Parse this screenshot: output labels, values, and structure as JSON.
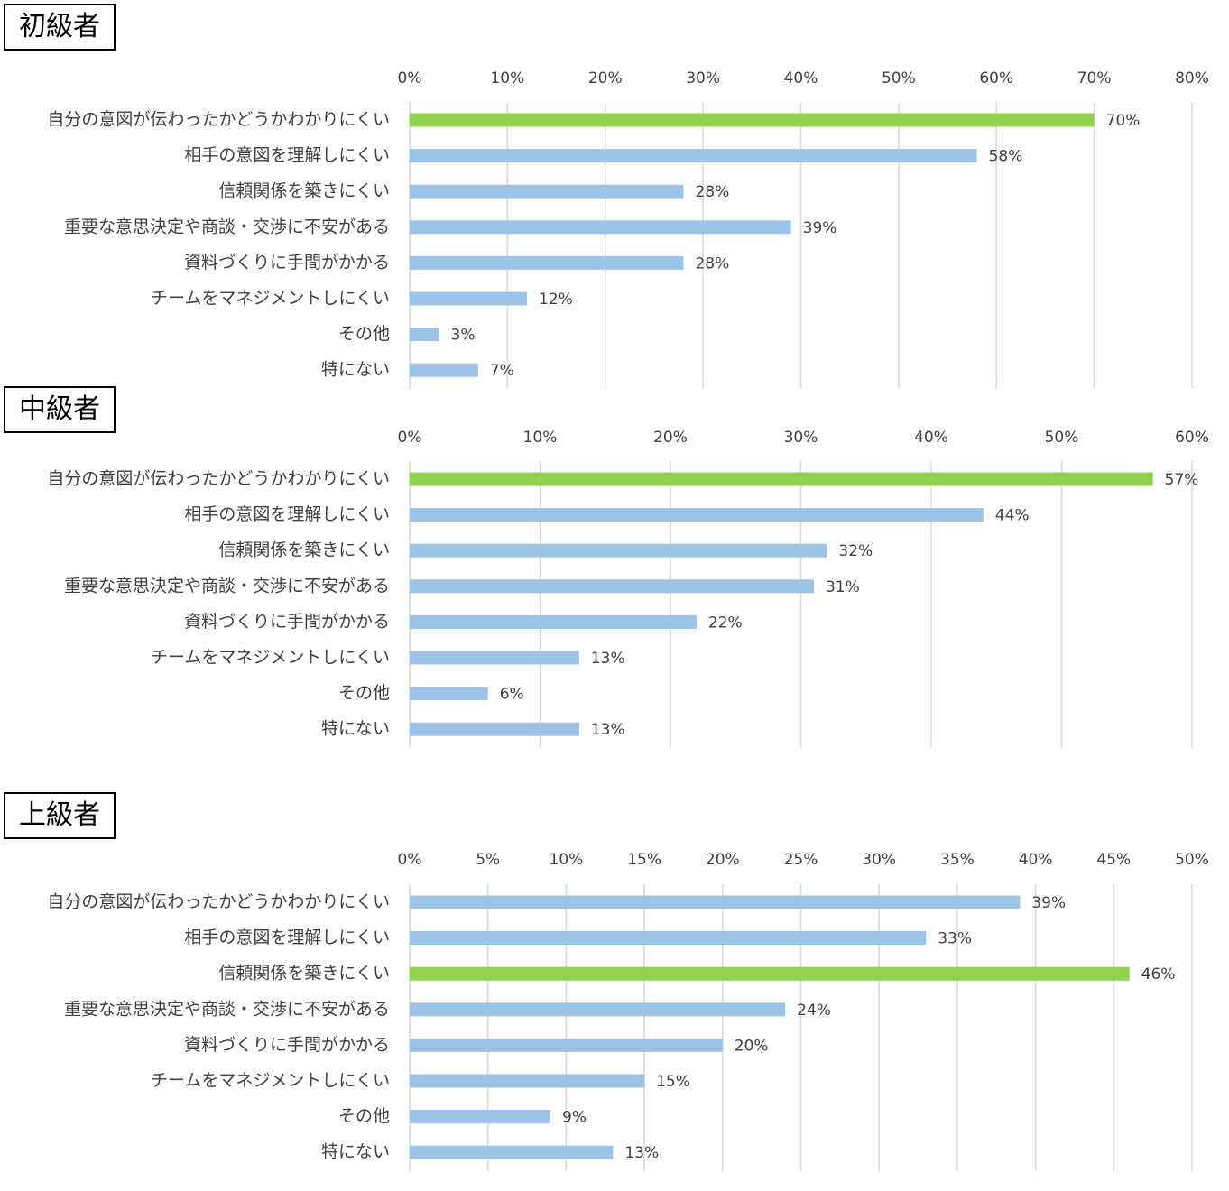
{
  "colors": {
    "highlight": "#92d050",
    "bar": "#9dc3e6",
    "grid": "#d9d9d9",
    "text": "#404040"
  },
  "chart_data": [
    {
      "type": "bar",
      "orientation": "horizontal",
      "title": "初級者",
      "categories": [
        "自分の意図が伝わったかどうかわかりにくい",
        "相手の意図を理解しにくい",
        "信頼関係を築きにくい",
        "重要な意思決定や商談・交渉に不安がある",
        "資料づくりに手間がかかる",
        "チームをマネジメントしにくい",
        "その他",
        "特にない"
      ],
      "values": [
        70,
        58,
        28,
        39,
        28,
        12,
        3,
        7
      ],
      "value_labels": [
        "70%",
        "58%",
        "28%",
        "39%",
        "28%",
        "12%",
        "3%",
        "7%"
      ],
      "highlight_index": 0,
      "xlim": [
        0,
        80
      ],
      "ticks": [
        "0%",
        "10%",
        "20%",
        "30%",
        "40%",
        "50%",
        "60%",
        "70%",
        "80%"
      ],
      "grid": true,
      "axis_position": "top"
    },
    {
      "type": "bar",
      "orientation": "horizontal",
      "title": "中級者",
      "categories": [
        "自分の意図が伝わったかどうかわかりにくい",
        "相手の意図を理解しにくい",
        "信頼関係を築きにくい",
        "重要な意思決定や商談・交渉に不安がある",
        "資料づくりに手間がかかる",
        "チームをマネジメントしにくい",
        "その他",
        "特にない"
      ],
      "values": [
        57,
        44,
        32,
        31,
        22,
        13,
        6,
        13
      ],
      "value_labels": [
        "57%",
        "44%",
        "32%",
        "31%",
        "22%",
        "13%",
        "6%",
        "13%"
      ],
      "highlight_index": 0,
      "xlim": [
        0,
        60
      ],
      "ticks": [
        "0%",
        "10%",
        "20%",
        "30%",
        "40%",
        "50%",
        "60%"
      ],
      "grid": true,
      "axis_position": "top"
    },
    {
      "type": "bar",
      "orientation": "horizontal",
      "title": "上級者",
      "categories": [
        "自分の意図が伝わったかどうかわかりにくい",
        "相手の意図を理解しにくい",
        "信頼関係を築きにくい",
        "重要な意思決定や商談・交渉に不安がある",
        "資料づくりに手間がかかる",
        "チームをマネジメントしにくい",
        "その他",
        "特にない"
      ],
      "values": [
        39,
        33,
        46,
        24,
        20,
        15,
        9,
        13
      ],
      "value_labels": [
        "39%",
        "33%",
        "46%",
        "24%",
        "20%",
        "15%",
        "9%",
        "13%"
      ],
      "highlight_index": 2,
      "xlim": [
        0,
        50
      ],
      "ticks": [
        "0%",
        "5%",
        "10%",
        "15%",
        "20%",
        "25%",
        "30%",
        "35%",
        "40%",
        "45%",
        "50%"
      ],
      "grid": true,
      "axis_position": "top"
    }
  ]
}
